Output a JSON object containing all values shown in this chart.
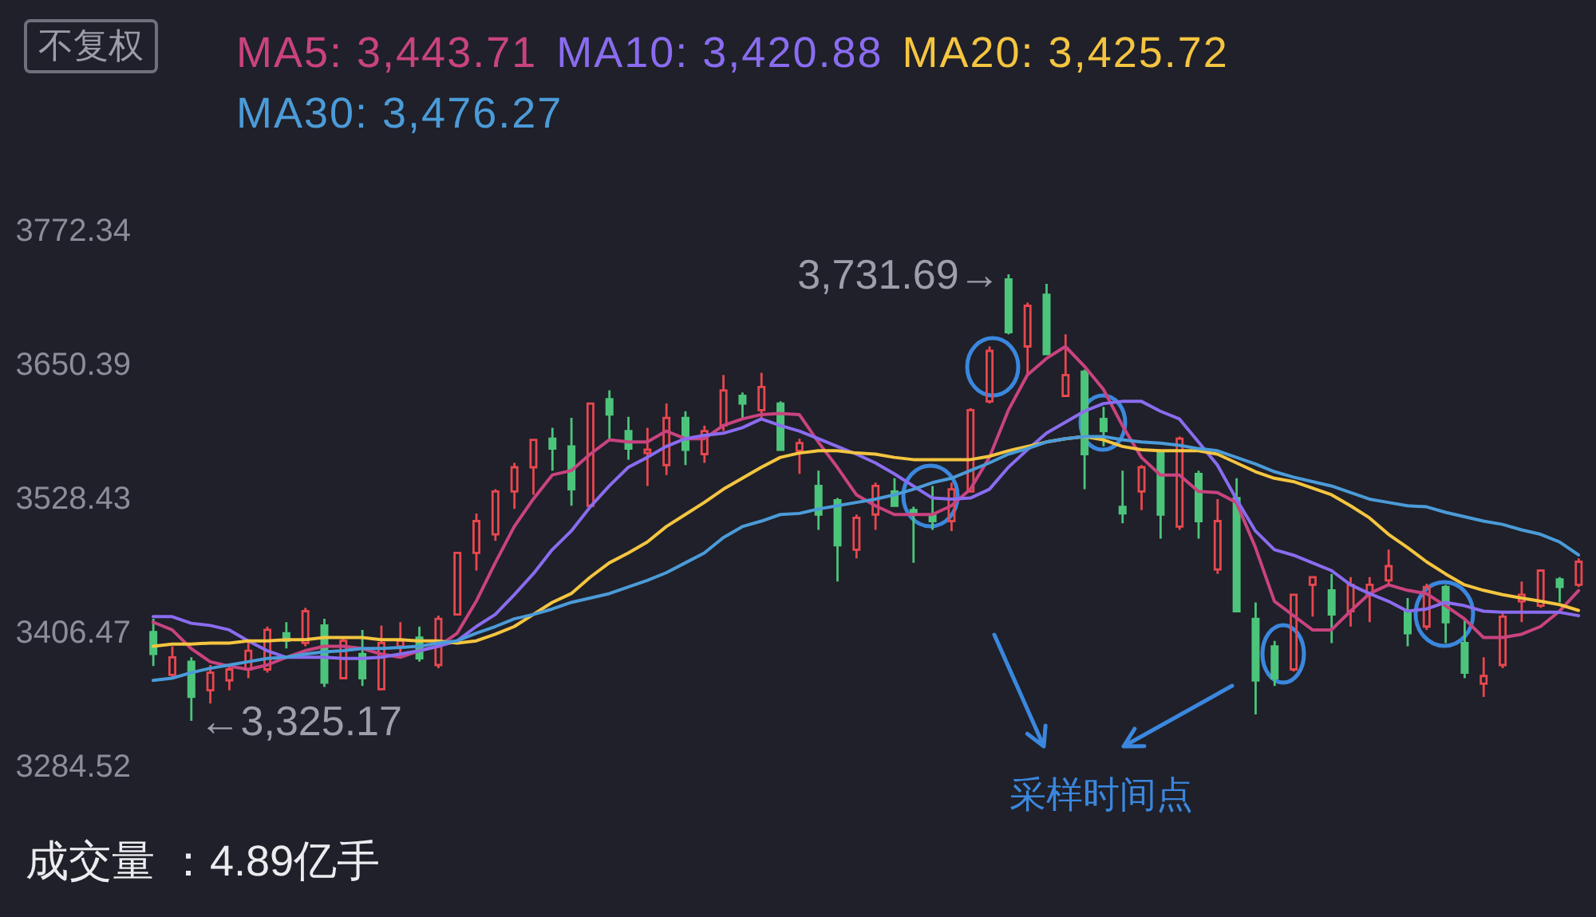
{
  "chart_data": {
    "type": "candlestick",
    "categories": [
      null,
      null,
      null,
      null,
      null,
      null,
      null,
      null,
      null,
      null,
      null,
      null,
      null,
      null,
      null,
      null,
      null,
      null,
      null,
      null,
      null,
      null,
      null,
      null,
      null,
      null,
      null,
      null,
      null,
      null,
      null,
      null,
      null,
      null,
      null,
      null,
      null,
      null,
      null,
      null,
      null,
      null,
      null,
      null,
      null,
      null,
      null,
      null,
      null,
      null,
      null,
      null,
      null,
      null,
      null,
      null,
      null,
      null,
      null,
      null,
      null,
      null,
      null,
      null,
      null,
      null,
      null,
      null,
      null,
      null,
      null,
      null,
      null,
      null,
      null,
      null
    ],
    "ohlc": [
      [
        3406,
        3418,
        3375,
        3386
      ],
      [
        3367,
        3393,
        3363,
        3383
      ],
      [
        3379,
        3383,
        3325.17,
        3347
      ],
      [
        3353,
        3376,
        3341,
        3369
      ],
      [
        3362,
        3376,
        3353,
        3372
      ],
      [
        3372,
        3398,
        3364,
        3389
      ],
      [
        3372,
        3411,
        3369,
        3408
      ],
      [
        3405,
        3415,
        3391,
        3398
      ],
      [
        3396,
        3428,
        3393,
        3425
      ],
      [
        3412,
        3418,
        3356,
        3360
      ],
      [
        3364,
        3401,
        3363,
        3398
      ],
      [
        3386,
        3408,
        3357,
        3364
      ],
      [
        3354,
        3412,
        3353,
        3396
      ],
      [
        3393,
        3415,
        3386,
        3398
      ],
      [
        3401,
        3411,
        3379,
        3382
      ],
      [
        3376,
        3421,
        3373,
        3418
      ],
      [
        3422,
        3479,
        3421,
        3478
      ],
      [
        3478,
        3514,
        3462,
        3507
      ],
      [
        3495,
        3536,
        3489,
        3534
      ],
      [
        3534,
        3560,
        3518,
        3556
      ],
      [
        3556,
        3582,
        3531,
        3581
      ],
      [
        3582,
        3592,
        3553,
        3573
      ],
      [
        3575,
        3601,
        3521,
        3536
      ],
      [
        3521,
        3615,
        3520,
        3614
      ],
      [
        3618,
        3626,
        3582,
        3604
      ],
      [
        3589,
        3602,
        3563,
        3573
      ],
      [
        3569,
        3592,
        3539,
        3572
      ],
      [
        3558,
        3614,
        3549,
        3601
      ],
      [
        3601,
        3607,
        3558,
        3572
      ],
      [
        3568,
        3594,
        3560,
        3589
      ],
      [
        3594,
        3640,
        3589,
        3626
      ],
      [
        3621,
        3624,
        3601,
        3614
      ],
      [
        3608,
        3642,
        3600,
        3629
      ],
      [
        3614,
        3616,
        3571,
        3572
      ],
      [
        3571,
        3582,
        3550,
        3578
      ],
      [
        3539,
        3553,
        3499,
        3513
      ],
      [
        3526,
        3528,
        3452,
        3485
      ],
      [
        3481,
        3513,
        3473,
        3510
      ],
      [
        3513,
        3542,
        3499,
        3539
      ],
      [
        3534,
        3546,
        3520,
        3521
      ],
      [
        3517,
        3520,
        3469,
        3513
      ],
      [
        3513,
        3539,
        3499,
        3507
      ],
      [
        3507,
        3542,
        3498,
        3536
      ],
      [
        3534,
        3610,
        3533,
        3608
      ],
      [
        3616,
        3666,
        3614,
        3662
      ],
      [
        3727,
        3731.69,
        3677,
        3679
      ],
      [
        3666,
        3706,
        3640,
        3703
      ],
      [
        3713,
        3723,
        3658,
        3659
      ],
      [
        3621,
        3677,
        3620,
        3640
      ],
      [
        3643,
        3645,
        3536,
        3568
      ],
      [
        3600,
        3611,
        3575,
        3589
      ],
      [
        3520,
        3553,
        3505,
        3514
      ],
      [
        3534,
        3558,
        3517,
        3556
      ],
      [
        3571,
        3572,
        3491,
        3513
      ],
      [
        3502,
        3584,
        3499,
        3582
      ],
      [
        3550,
        3553,
        3491,
        3507
      ],
      [
        3463,
        3527,
        3459,
        3507
      ],
      [
        3528,
        3546,
        3424,
        3425
      ],
      [
        3418,
        3433,
        3331,
        3362
      ],
      [
        3393,
        3398,
        3357,
        3364
      ],
      [
        3372,
        3441,
        3370,
        3440
      ],
      [
        3449,
        3457,
        3420,
        3456
      ],
      [
        3444,
        3459,
        3396,
        3422
      ],
      [
        3425,
        3456,
        3411,
        3449
      ],
      [
        3440,
        3456,
        3415,
        3449
      ],
      [
        3453,
        3481,
        3449,
        3466
      ],
      [
        3425,
        3437,
        3393,
        3405
      ],
      [
        3411,
        3450,
        3408,
        3447
      ],
      [
        3447,
        3449,
        3396,
        3415
      ],
      [
        3396,
        3418,
        3364,
        3369
      ],
      [
        3359,
        3383,
        3347,
        3366
      ],
      [
        3376,
        3424,
        3373,
        3420
      ],
      [
        3434,
        3452,
        3415,
        3440
      ],
      [
        3430,
        3463,
        3428,
        3462
      ],
      [
        3454,
        3456,
        3433,
        3447
      ],
      [
        3449,
        3473,
        3447,
        3470
      ]
    ],
    "colors": [
      "#4cc57b",
      "#e8474f",
      "#4cc57b",
      "#e8474f",
      "#e8474f",
      "#e8474f",
      "#e8474f",
      "#4cc57b",
      "#e8474f",
      "#4cc57b",
      "#e8474f",
      "#4cc57b",
      "#e8474f",
      "#e8474f",
      "#4cc57b",
      "#e8474f",
      "#e8474f",
      "#e8474f",
      "#e8474f",
      "#e8474f",
      "#e8474f",
      "#4cc57b",
      "#4cc57b",
      "#e8474f",
      "#4cc57b",
      "#4cc57b",
      "#e8474f",
      "#e8474f",
      "#4cc57b",
      "#e8474f",
      "#e8474f",
      "#4cc57b",
      "#e8474f",
      "#4cc57b",
      "#e8474f",
      "#4cc57b",
      "#4cc57b",
      "#e8474f",
      "#e8474f",
      "#4cc57b",
      "#4cc57b",
      "#4cc57b",
      "#e8474f",
      "#e8474f",
      "#e8474f",
      "#4cc57b",
      "#e8474f",
      "#4cc57b",
      "#e8474f",
      "#4cc57b",
      "#4cc57b",
      "#4cc57b",
      "#e8474f",
      "#4cc57b",
      "#e8474f",
      "#4cc57b",
      "#e8474f",
      "#4cc57b",
      "#4cc57b",
      "#4cc57b",
      "#e8474f",
      "#e8474f",
      "#4cc57b",
      "#e8474f",
      "#e8474f",
      "#e8474f",
      "#4cc57b",
      "#e8474f",
      "#4cc57b",
      "#4cc57b",
      "#e8474f",
      "#e8474f",
      "#e8474f",
      "#e8474f",
      "#4cc57b",
      "#e8474f"
    ],
    "series": [
      {
        "type": "line",
        "name": "MA5: 3,443.71",
        "color": "#c9437f",
        "values": [
          3415,
          3408,
          3391,
          3379,
          3375,
          3372,
          3376,
          3383,
          3389,
          3393,
          3393,
          3391,
          3386,
          3383,
          3389,
          3393,
          3405,
          3434,
          3469,
          3502,
          3527,
          3549,
          3553,
          3568,
          3581,
          3579,
          3579,
          3589,
          3582,
          3582,
          3594,
          3600,
          3604,
          3605,
          3604,
          3579,
          3556,
          3531,
          3521,
          3513,
          3513,
          3513,
          3521,
          3536,
          3565,
          3608,
          3640,
          3655,
          3666,
          3648,
          3627,
          3594,
          3565,
          3549,
          3549,
          3534,
          3533,
          3524,
          3483,
          3434,
          3421,
          3408,
          3408,
          3425,
          3441,
          3449,
          3444,
          3441,
          3430,
          3418,
          3401,
          3401,
          3404,
          3411,
          3425,
          3443.71
        ]
      },
      {
        "type": "line",
        "name": "MA10: 3,420.88",
        "color": "#8a6cf0",
        "values": [
          3420,
          3420,
          3414,
          3412,
          3408,
          3398,
          3389,
          3383,
          3383,
          3383,
          3382,
          3382,
          3383,
          3386,
          3389,
          3393,
          3398,
          3411,
          3422,
          3440,
          3459,
          3481,
          3498,
          3520,
          3539,
          3556,
          3565,
          3575,
          3582,
          3585,
          3587,
          3592,
          3600,
          3594,
          3589,
          3582,
          3575,
          3568,
          3560,
          3550,
          3539,
          3528,
          3527,
          3528,
          3536,
          3556,
          3572,
          3587,
          3597,
          3607,
          3614,
          3616,
          3616,
          3607,
          3600,
          3579,
          3558,
          3527,
          3498,
          3481,
          3476,
          3469,
          3462,
          3449,
          3441,
          3434,
          3425,
          3427,
          3433,
          3430,
          3425,
          3424,
          3424,
          3424,
          3424,
          3420.88
        ]
      },
      {
        "type": "line",
        "name": "MA20: 3,425.72",
        "color": "#f5c540",
        "values": [
          3393,
          3395,
          3395,
          3396,
          3396,
          3398,
          3398,
          3399,
          3399,
          3401,
          3401,
          3401,
          3399,
          3399,
          3398,
          3398,
          3396,
          3398,
          3404,
          3411,
          3422,
          3433,
          3441,
          3456,
          3469,
          3478,
          3488,
          3502,
          3513,
          3524,
          3536,
          3546,
          3556,
          3565,
          3569,
          3571,
          3571,
          3569,
          3568,
          3565,
          3563,
          3563,
          3563,
          3563,
          3566,
          3571,
          3575,
          3579,
          3582,
          3584,
          3581,
          3575,
          3572,
          3571,
          3571,
          3571,
          3568,
          3560,
          3552,
          3546,
          3543,
          3537,
          3531,
          3521,
          3510,
          3495,
          3483,
          3470,
          3459,
          3449,
          3444,
          3440,
          3437,
          3434,
          3431,
          3425.72
        ]
      },
      {
        "type": "line",
        "name": "MA30: 3,476.27",
        "color": "#4b9bd8",
        "values": [
          3362,
          3364,
          3369,
          3373,
          3376,
          3379,
          3382,
          3383,
          3386,
          3388,
          3389,
          3391,
          3391,
          3392,
          3393,
          3396,
          3398,
          3405,
          3411,
          3418,
          3422,
          3427,
          3433,
          3437,
          3441,
          3447,
          3453,
          3460,
          3469,
          3478,
          3492,
          3502,
          3507,
          3513,
          3514,
          3518,
          3521,
          3524,
          3527,
          3531,
          3536,
          3542,
          3546,
          3553,
          3560,
          3568,
          3573,
          3579,
          3582,
          3584,
          3584,
          3581,
          3579,
          3578,
          3576,
          3573,
          3571,
          3565,
          3559,
          3552,
          3547,
          3543,
          3539,
          3533,
          3527,
          3524,
          3521,
          3520,
          3515,
          3511,
          3507,
          3504,
          3499,
          3495,
          3488,
          3476.27
        ]
      }
    ],
    "ylim": [
      3284.52,
      3772.34
    ],
    "yticks": [
      3284.52,
      3406.47,
      3528.43,
      3650.39,
      3772.34
    ],
    "tick_labels": "y",
    "legend": "top left",
    "annotations": [
      "不复权",
      "3,731.69→",
      "←3,325.17",
      "采样时间点",
      "成交量 ：4.89亿手"
    ]
  }
}
